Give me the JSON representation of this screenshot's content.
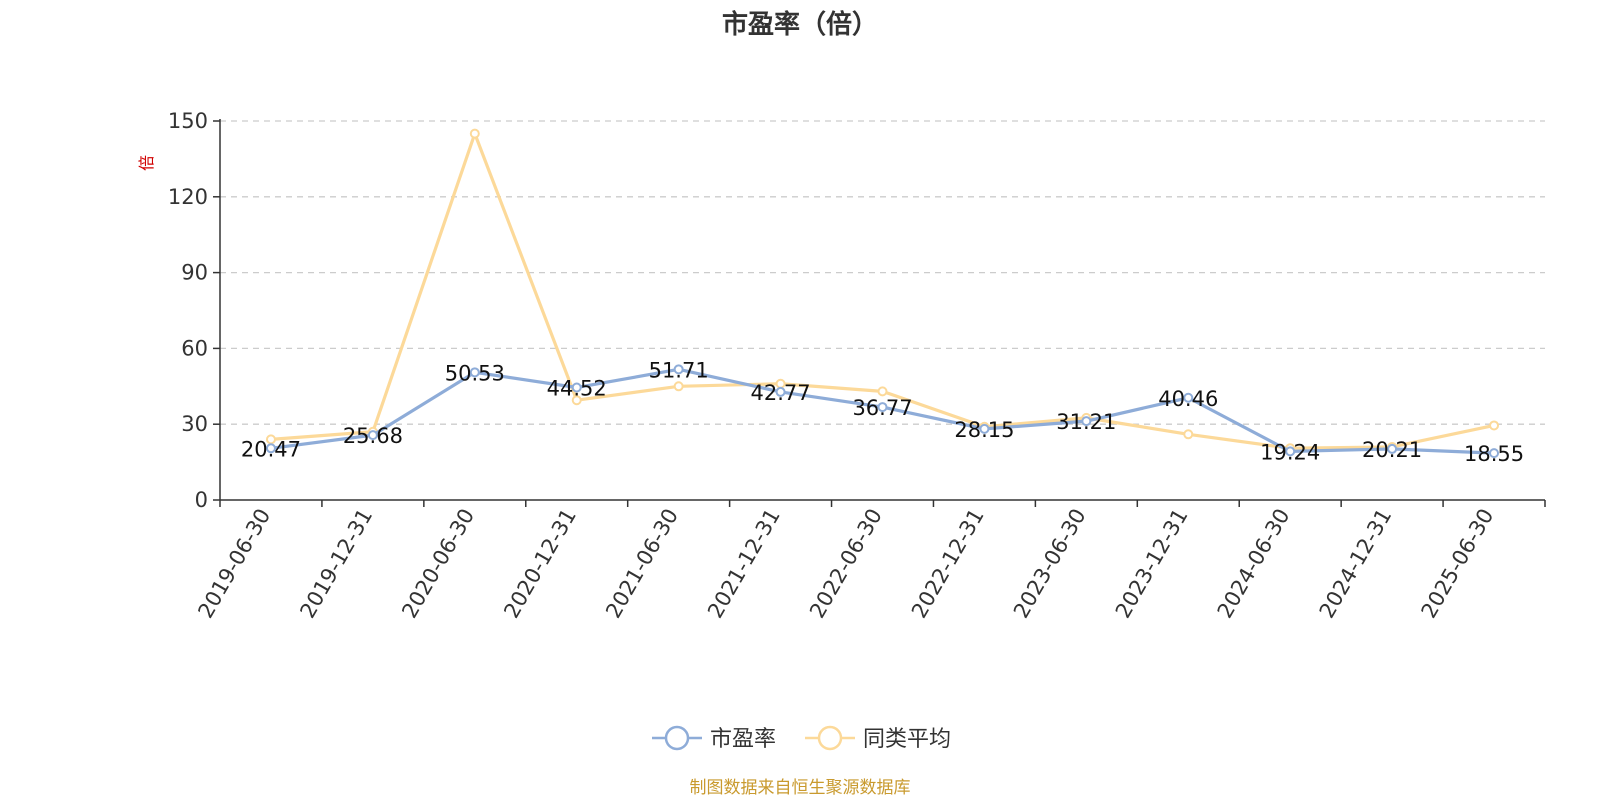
{
  "chart_data": {
    "type": "line",
    "title": "市盈率（倍）",
    "ylabel": "倍",
    "ylim": [
      0,
      150
    ],
    "yticks": [
      0,
      30,
      60,
      90,
      120,
      150
    ],
    "grid": true,
    "legend_position": "bottom",
    "categories": [
      "2019-06-30",
      "2019-12-31",
      "2020-06-30",
      "2020-12-31",
      "2021-06-30",
      "2021-12-31",
      "2022-06-30",
      "2022-12-31",
      "2023-06-30",
      "2023-12-31",
      "2024-06-30",
      "2024-12-31",
      "2025-06-30"
    ],
    "series": [
      {
        "name": "市盈率",
        "color": "#8eacd8",
        "values": [
          20.47,
          25.68,
          50.53,
          44.52,
          51.71,
          42.77,
          36.77,
          28.15,
          31.21,
          40.46,
          19.24,
          20.21,
          18.55
        ],
        "labels": [
          "20.47",
          "25.68",
          "50.53",
          "44.52",
          "51.71",
          "42.77",
          "36.77",
          "28.15",
          "31.21",
          "40.46",
          "19.24",
          "20.21",
          "18.55"
        ]
      },
      {
        "name": "同类平均",
        "color": "#fcd999",
        "values": [
          24.0,
          27.0,
          145.0,
          39.5,
          45.0,
          46.0,
          43.0,
          29.0,
          32.5,
          26.0,
          20.5,
          21.0,
          29.5
        ]
      }
    ]
  },
  "source": "制图数据来自恒生聚源数据库"
}
